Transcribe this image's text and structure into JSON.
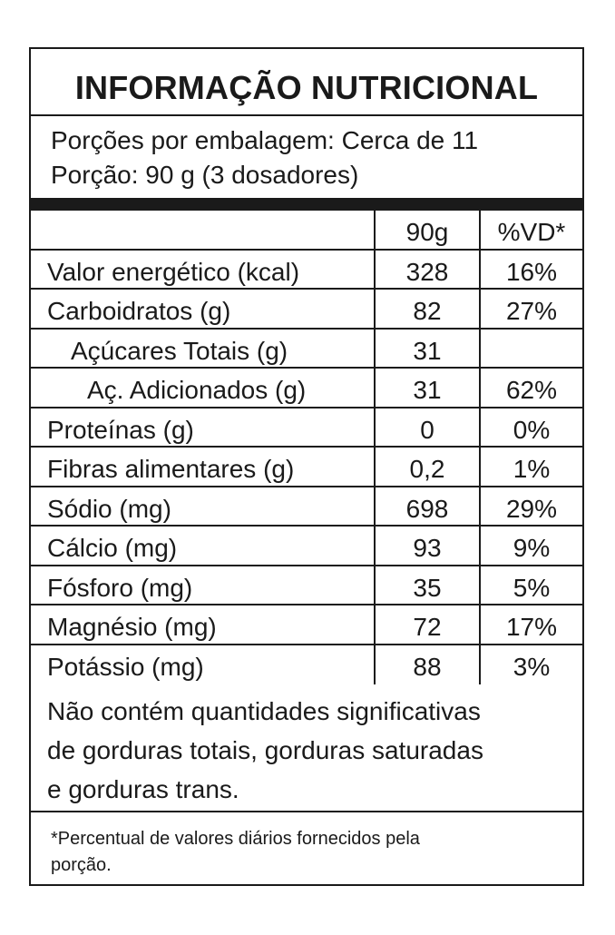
{
  "title": "INFORMAÇÃO NUTRICIONAL",
  "servings": {
    "per_package": "Porções por embalagem: Cerca de 11",
    "portion": "Porção: 90 g (3 dosadores)"
  },
  "table": {
    "header": {
      "name": "",
      "amount": "90g",
      "dv": "%VD*"
    },
    "rows": [
      {
        "name": "Valor energético (kcal)",
        "amount": "328",
        "dv": "16%",
        "indent": 0
      },
      {
        "name": "Carboidratos (g)",
        "amount": "82",
        "dv": "27%",
        "indent": 0
      },
      {
        "name": "Açúcares Totais (g)",
        "amount": "31",
        "dv": "",
        "indent": 1
      },
      {
        "name": "Aç. Adicionados (g)",
        "amount": "31",
        "dv": "62%",
        "indent": 2
      },
      {
        "name": "Proteínas (g)",
        "amount": "0",
        "dv": "0%",
        "indent": 0
      },
      {
        "name": "Fibras alimentares (g)",
        "amount": "0,2",
        "dv": "1%",
        "indent": 0
      },
      {
        "name": "Sódio (mg)",
        "amount": "698",
        "dv": "29%",
        "indent": 0
      },
      {
        "name": "Cálcio (mg)",
        "amount": "93",
        "dv": "9%",
        "indent": 0
      },
      {
        "name": "Fósforo (mg)",
        "amount": "35",
        "dv": "5%",
        "indent": 0
      },
      {
        "name": "Magnésio (mg)",
        "amount": "72",
        "dv": "17%",
        "indent": 0
      },
      {
        "name": "Potássio (mg)",
        "amount": "88",
        "dv": "3%",
        "indent": 0
      }
    ]
  },
  "note": {
    "line1": "Não contém quantidades significativas",
    "line2": "de gorduras totais, gorduras saturadas",
    "line3": "e gorduras trans."
  },
  "footnote": {
    "line1": "*Percentual de valores diários fornecidos pela",
    "line2": "porção."
  }
}
